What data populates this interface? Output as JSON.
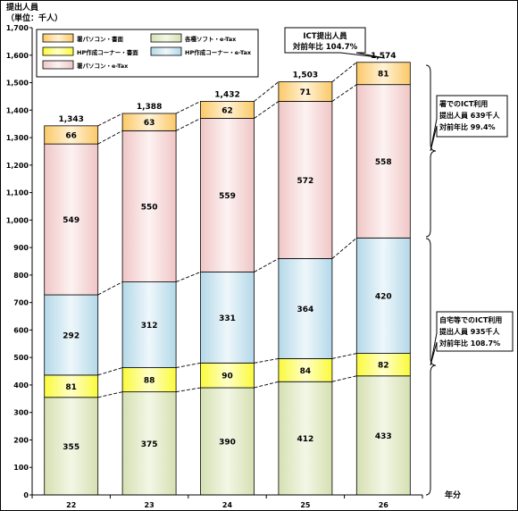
{
  "chart_data": {
    "type": "bar",
    "stacked": true,
    "unit_label_line1": "提出人員",
    "unit_label_line2": "（単位：千人）",
    "xlabel": "年分",
    "categories": [
      "22",
      "23",
      "24",
      "25",
      "26"
    ],
    "ylim": [
      0,
      1700
    ],
    "yticks": [
      0,
      100,
      200,
      300,
      400,
      500,
      600,
      700,
      800,
      900,
      1000,
      1100,
      1200,
      1300,
      1400,
      1500,
      1600,
      1700
    ],
    "ytick_labels": [
      "0",
      "100",
      "200",
      "300",
      "400",
      "500",
      "600",
      "700",
      "800",
      "900",
      "1,000",
      "1,100",
      "1,200",
      "1,300",
      "1,400",
      "1,500",
      "1,600",
      "1,700"
    ],
    "series": [
      {
        "name": "各種ソフト・e-Tax",
        "color": "#e3ebcd",
        "values": [
          355,
          375,
          390,
          412,
          433
        ]
      },
      {
        "name": "HP作成コーナー・書面",
        "color": "#fefe7e",
        "values": [
          81,
          88,
          90,
          84,
          82
        ]
      },
      {
        "name": "HP作成コーナー・e-Tax",
        "color": "#cfe5f0",
        "values": [
          292,
          312,
          331,
          364,
          420
        ]
      },
      {
        "name": "署パソコン・e-Tax",
        "color": "#f6dcdc",
        "values": [
          549,
          550,
          559,
          572,
          558
        ]
      },
      {
        "name": "署パソコン・書面",
        "color": "#fde0a4",
        "values": [
          66,
          63,
          62,
          71,
          81
        ]
      }
    ],
    "totals": [
      "1,343",
      "1,388",
      "1,432",
      "1,503",
      "1,574"
    ],
    "legend_order": [
      4,
      1,
      3,
      0,
      2
    ],
    "legend_placement": "top-left",
    "grid": false,
    "callouts": [
      {
        "lines": [
          "ICT提出人員",
          "対前年比 104.7%"
        ]
      },
      {
        "lines": [
          "署でのICT利用",
          "提出人員 639千人",
          "対前年比 99.4%"
        ]
      },
      {
        "lines": [
          "自宅等でのICT利用",
          "提出人員 935千人",
          "対前年比 108.7%"
        ]
      }
    ]
  }
}
